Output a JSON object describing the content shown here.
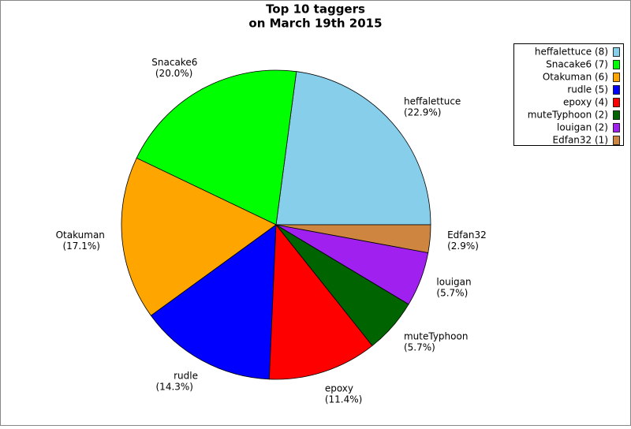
{
  "chart_data": {
    "type": "pie",
    "title": "Top 10 taggers",
    "subtitle": "on March 19th 2015",
    "categories": [
      "heffalettuce",
      "Snacake6",
      "Otakuman",
      "rudle",
      "epoxy",
      "muteTyphoon",
      "louigan",
      "Edfan32"
    ],
    "values": [
      22.9,
      20.0,
      17.1,
      14.3,
      11.4,
      5.7,
      5.7,
      2.9
    ],
    "value_labels": [
      "(22.9%)",
      "(20.0%)",
      "(17.1%)",
      "(14.3%)",
      "(11.4%)",
      "(5.7%)",
      "(5.7%)",
      "(2.9%)"
    ],
    "legend": [
      "heffalettuce (8)",
      "Snacake6 (7)",
      "Otakuman (6)",
      "rudle (5)",
      "epoxy (4)",
      "muteTyphoon (2)",
      "louigan (2)",
      "Edfan32 (1)"
    ],
    "colors": [
      "#87ceeb",
      "#00ff00",
      "#ffa500",
      "#0000ff",
      "#ff0000",
      "#006400",
      "#a020f0",
      "#cd853f"
    ],
    "legend_position": "upper right"
  }
}
